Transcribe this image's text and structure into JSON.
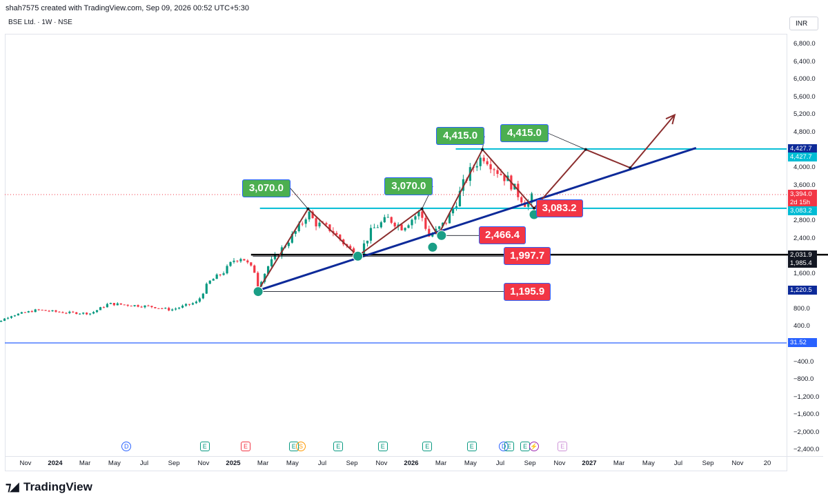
{
  "header": {
    "attribution": "shah7575 created with TradingView.com, Sep 09, 2026 00:52 UTC+5:30",
    "symbol_line": "BSE Ltd. · 1W · NSE"
  },
  "currency_button": "INR",
  "brand": {
    "name": "TradingView"
  },
  "colors": {
    "up": "#089981",
    "down": "#f23645",
    "trendline": "#0d2a99",
    "cyan": "#00bcd4",
    "path": "#8b2e2e",
    "blue_tag": "#0d2a99",
    "black_tag": "#131722",
    "red_tag": "#f23645",
    "green_box": "#4caf50"
  },
  "chart_data": {
    "type": "candlestick",
    "y_ticks": [
      "6,800.0",
      "6,400.0",
      "6,000.0",
      "5,600.0",
      "5,200.0",
      "4,800.0",
      "4,000.0",
      "3,600.0",
      "2,800.0",
      "2,400.0",
      "1,600.0",
      "800.0",
      "400.0",
      "−400.0",
      "−800.0",
      "−1,200.0",
      "−1,600.0",
      "−2,000.0",
      "−2,400.0"
    ],
    "y_tick_values": [
      6800,
      6400,
      6000,
      5600,
      5200,
      4800,
      4000,
      3600,
      2800,
      2400,
      1600,
      800,
      400,
      -400,
      -800,
      -1200,
      -1600,
      -2000,
      -2400
    ],
    "ylim": [
      -2560,
      7260
    ],
    "x_ticks": [
      {
        "label": "Nov",
        "t": 2023.833,
        "bold": false
      },
      {
        "label": "2024",
        "t": 2024.0,
        "bold": true
      },
      {
        "label": "Mar",
        "t": 2024.167,
        "bold": false
      },
      {
        "label": "May",
        "t": 2024.333,
        "bold": false
      },
      {
        "label": "Jul",
        "t": 2024.5,
        "bold": false
      },
      {
        "label": "Sep",
        "t": 2024.667,
        "bold": false
      },
      {
        "label": "Nov",
        "t": 2024.833,
        "bold": false
      },
      {
        "label": "2025",
        "t": 2025.0,
        "bold": true
      },
      {
        "label": "Mar",
        "t": 2025.167,
        "bold": false
      },
      {
        "label": "May",
        "t": 2025.333,
        "bold": false
      },
      {
        "label": "Jul",
        "t": 2025.5,
        "bold": false
      },
      {
        "label": "Sep",
        "t": 2025.667,
        "bold": false
      },
      {
        "label": "Nov",
        "t": 2025.833,
        "bold": false
      },
      {
        "label": "2026",
        "t": 2026.0,
        "bold": true
      },
      {
        "label": "Mar",
        "t": 2026.167,
        "bold": false
      },
      {
        "label": "May",
        "t": 2026.333,
        "bold": false
      },
      {
        "label": "Jul",
        "t": 2026.5,
        "bold": false
      },
      {
        "label": "Sep",
        "t": 2026.667,
        "bold": false
      },
      {
        "label": "Nov",
        "t": 2026.833,
        "bold": false
      },
      {
        "label": "2027",
        "t": 2027.0,
        "bold": true
      },
      {
        "label": "Mar",
        "t": 2027.167,
        "bold": false
      },
      {
        "label": "May",
        "t": 2027.333,
        "bold": false
      },
      {
        "label": "Jul",
        "t": 2027.5,
        "bold": false
      },
      {
        "label": "Sep",
        "t": 2027.667,
        "bold": false
      },
      {
        "label": "Nov",
        "t": 2027.833,
        "bold": false
      },
      {
        "label": "20",
        "t": 2028.0,
        "bold": false
      }
    ],
    "anchors": [
      {
        "t": 2023.6,
        "v": 350
      },
      {
        "t": 2023.75,
        "v": 650
      },
      {
        "t": 2023.9,
        "v": 780
      },
      {
        "t": 2024.05,
        "v": 720
      },
      {
        "t": 2024.2,
        "v": 700
      },
      {
        "t": 2024.3,
        "v": 920
      },
      {
        "t": 2024.45,
        "v": 880
      },
      {
        "t": 2024.55,
        "v": 850
      },
      {
        "t": 2024.65,
        "v": 780
      },
      {
        "t": 2024.75,
        "v": 900
      },
      {
        "t": 2024.8,
        "v": 960
      },
      {
        "t": 2024.86,
        "v": 1400
      },
      {
        "t": 2024.95,
        "v": 1650
      },
      {
        "t": 2025.0,
        "v": 1900
      },
      {
        "t": 2025.05,
        "v": 1980
      },
      {
        "t": 2025.09,
        "v": 1780
      },
      {
        "t": 2025.12,
        "v": 1650
      },
      {
        "t": 2025.14,
        "v": 1320
      },
      {
        "t": 2025.2,
        "v": 1800
      },
      {
        "t": 2025.3,
        "v": 2300
      },
      {
        "t": 2025.38,
        "v": 2700
      },
      {
        "t": 2025.42,
        "v": 3000
      },
      {
        "t": 2025.46,
        "v": 2750
      },
      {
        "t": 2025.55,
        "v": 2600
      },
      {
        "t": 2025.63,
        "v": 2250
      },
      {
        "t": 2025.7,
        "v": 2000
      },
      {
        "t": 2025.78,
        "v": 2600
      },
      {
        "t": 2025.87,
        "v": 2850
      },
      {
        "t": 2025.95,
        "v": 2650
      },
      {
        "t": 2026.02,
        "v": 2900
      },
      {
        "t": 2026.05,
        "v": 3000
      },
      {
        "t": 2026.1,
        "v": 2450
      },
      {
        "t": 2026.15,
        "v": 2600
      },
      {
        "t": 2026.2,
        "v": 2800
      },
      {
        "t": 2026.25,
        "v": 3200
      },
      {
        "t": 2026.3,
        "v": 3700
      },
      {
        "t": 2026.36,
        "v": 4100
      },
      {
        "t": 2026.41,
        "v": 4280
      },
      {
        "t": 2026.48,
        "v": 3950
      },
      {
        "t": 2026.55,
        "v": 3700
      },
      {
        "t": 2026.6,
        "v": 3400
      },
      {
        "t": 2026.65,
        "v": 3150
      },
      {
        "t": 2026.69,
        "v": 3394
      }
    ],
    "price_tags": [
      {
        "label": "4,427.7",
        "value": 4427.7,
        "color": "#0d2a99"
      },
      {
        "label": "4,427.7",
        "value": 4427.7,
        "color": "#00bcd4"
      },
      {
        "label": "3,394.0",
        "value": 3394.0,
        "color": "#f23645"
      },
      {
        "label": "2d 15h",
        "value": 3394.0,
        "color": "#f23645"
      },
      {
        "label": "3,083.2",
        "value": 3083.2,
        "color": "#00bcd4"
      },
      {
        "label": "2,031.9",
        "value": 2031.9,
        "color": "#131722"
      },
      {
        "label": "1,985.4",
        "value": 1985.4,
        "color": "#131722"
      },
      {
        "label": "1,220.5",
        "value": 1220.5,
        "color": "#0d2a99"
      },
      {
        "label": "31.52",
        "value": 31.52,
        "color": "#2962ff"
      }
    ],
    "annotations": {
      "green_labels": [
        {
          "text": "3,070.0",
          "box_t": 2025.05,
          "box_v": 3535,
          "target": {
            "t": 2025.42,
            "v": 3070
          }
        },
        {
          "text": "3,070.0",
          "box_t": 2025.85,
          "box_v": 3580,
          "target": {
            "t": 2026.06,
            "v": 3070
          }
        },
        {
          "text": "4,415.0",
          "box_t": 2026.14,
          "box_v": 4720,
          "target": {
            "t": 2026.4,
            "v": 4415
          }
        },
        {
          "text": "4,415.0",
          "box_t": 2026.5,
          "box_v": 4780,
          "target": {
            "t": 2026.98,
            "v": 4415
          }
        }
      ],
      "red_labels": [
        {
          "text": "3,083.2",
          "box_t": 2026.7,
          "box_v": 3083,
          "anchor": {
            "t": 2026.69,
            "v": 3083
          }
        },
        {
          "text": "2,466.4",
          "box_t": 2026.38,
          "box_v": 2466,
          "anchor": {
            "t": 2026.15,
            "v": 2466
          }
        },
        {
          "text": "1,997.7",
          "box_t": 2026.52,
          "box_v": 1997,
          "anchor": {
            "t": 2025.11,
            "v": 1997
          }
        },
        {
          "text": "1,195.9",
          "box_t": 2026.52,
          "box_v": 1195,
          "anchor": {
            "t": 2025.14,
            "v": 1195
          }
        }
      ],
      "cyan_lines": [
        {
          "v": 4427.7,
          "t0": 2026.25
        },
        {
          "v": 3083.2,
          "t0": 2025.15
        }
      ],
      "support_line": {
        "t0": 2025.14,
        "v0": 1220,
        "t1": 2027.6,
        "v1": 4450
      },
      "black_line": {
        "t0": 2025.1,
        "v0": 2031,
        "t1": 2028.05,
        "v1": 2031
      },
      "baseline": {
        "v": 31.52
      },
      "zigzag_path": [
        {
          "t": 2025.14,
          "v": 1220
        },
        {
          "t": 2025.42,
          "v": 3070
        },
        {
          "t": 2025.7,
          "v": 2000
        },
        {
          "t": 2026.06,
          "v": 3070
        },
        {
          "t": 2026.15,
          "v": 2466
        },
        {
          "t": 2026.4,
          "v": 4415
        },
        {
          "t": 2026.69,
          "v": 3083
        },
        {
          "t": 2026.98,
          "v": 4415
        },
        {
          "t": 2027.23,
          "v": 4000
        },
        {
          "t": 2027.48,
          "v": 5200
        }
      ],
      "dots": [
        {
          "t": 2025.14,
          "v": 1195
        },
        {
          "t": 2025.7,
          "v": 1997
        },
        {
          "t": 2026.12,
          "v": 2200
        },
        {
          "t": 2026.17,
          "v": 2466
        },
        {
          "t": 2026.69,
          "v": 2940
        }
      ]
    }
  },
  "events": [
    {
      "t": 2024.4,
      "kind": "d",
      "glyph": "D"
    },
    {
      "t": 2024.84,
      "kind": "e",
      "glyph": "E"
    },
    {
      "t": 2025.07,
      "kind": "er",
      "glyph": "E"
    },
    {
      "t": 2025.34,
      "kind": "e",
      "glyph": "E"
    },
    {
      "t": 2025.38,
      "kind": "split",
      "glyph": "S"
    },
    {
      "t": 2025.59,
      "kind": "e",
      "glyph": "E"
    },
    {
      "t": 2025.84,
      "kind": "e",
      "glyph": "E"
    },
    {
      "t": 2026.09,
      "kind": "e",
      "glyph": "E"
    },
    {
      "t": 2026.34,
      "kind": "e",
      "glyph": "E"
    },
    {
      "t": 2026.52,
      "kind": "d",
      "glyph": "D"
    },
    {
      "t": 2026.55,
      "kind": "e",
      "glyph": "E"
    },
    {
      "t": 2026.64,
      "kind": "e",
      "glyph": "E"
    },
    {
      "t": 2026.69,
      "kind": "s",
      "glyph": "⚡"
    },
    {
      "t": 2026.85,
      "kind": "ep",
      "glyph": "E"
    }
  ]
}
